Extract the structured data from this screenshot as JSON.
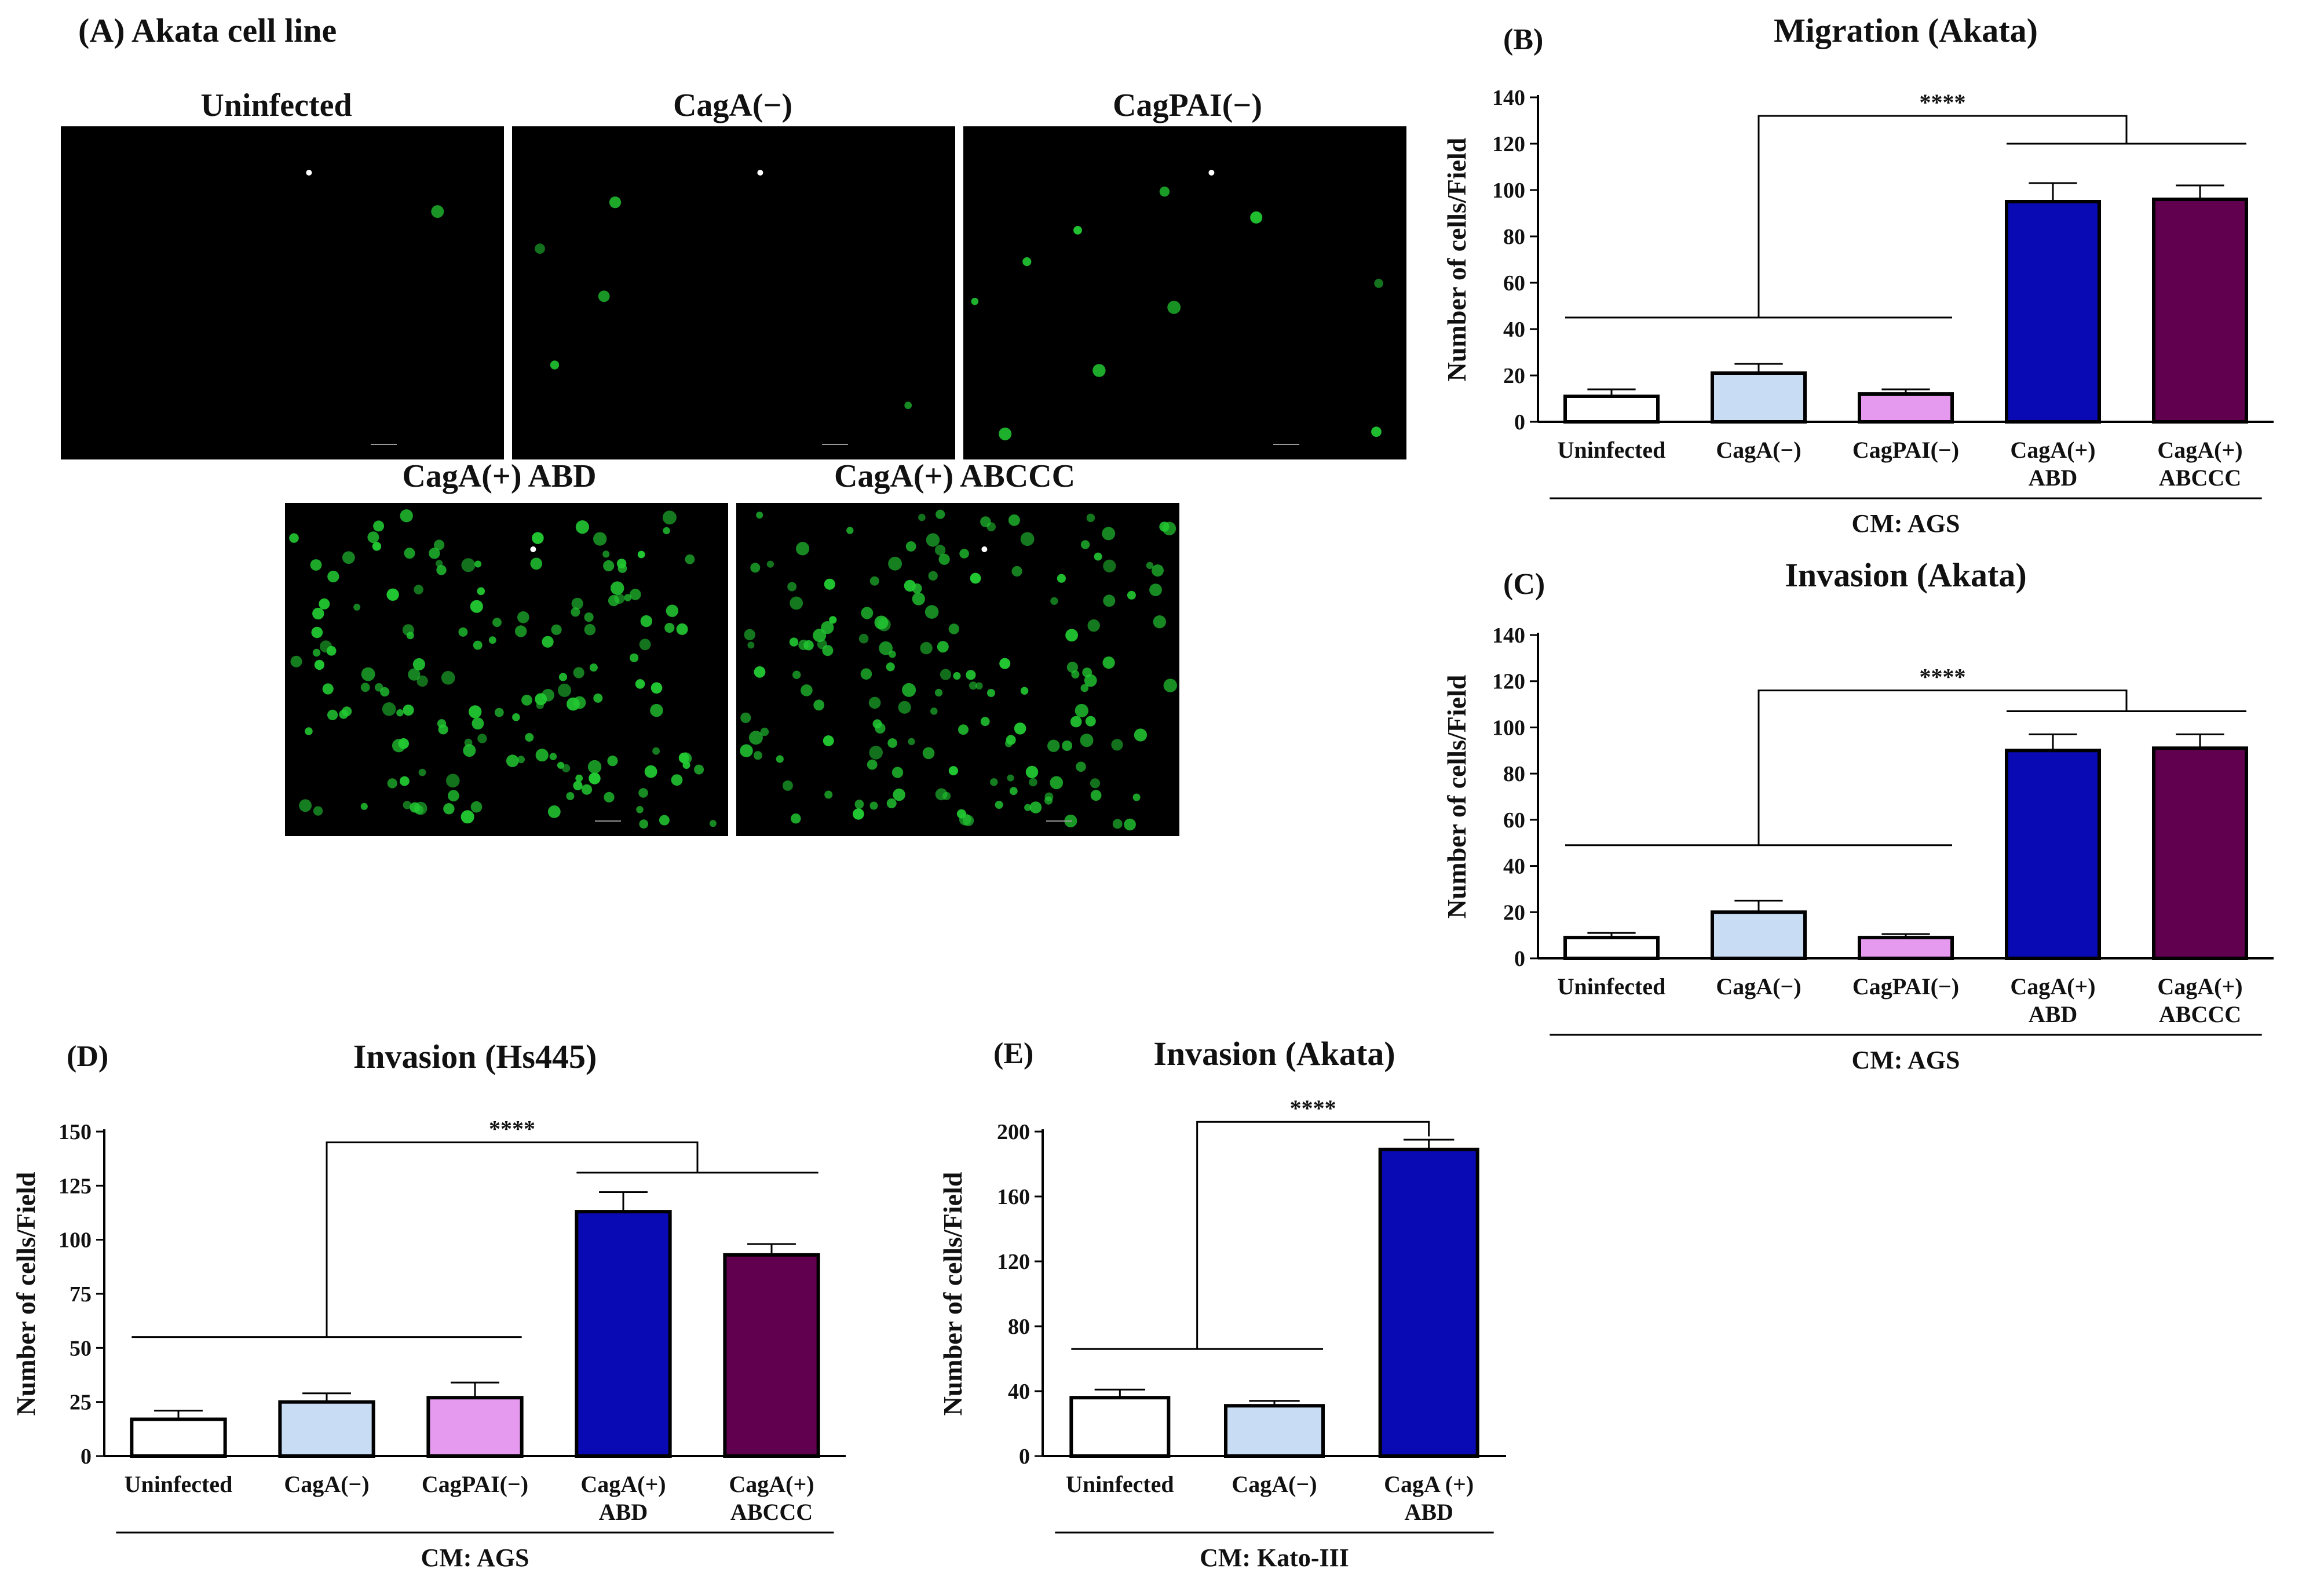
{
  "colors": {
    "uninfected": "#ffffff",
    "caga_neg": "#c8dcf4",
    "cagpai_neg": "#e59af0",
    "abd": "#0a0ab4",
    "abccc": "#620050",
    "cell_green": "#22c832",
    "micro_bg": "#000000"
  },
  "panel_a": {
    "label": "(A) Akata cell line",
    "images": [
      {
        "title": "Uninfected",
        "cell_count": 1
      },
      {
        "title": "CagA(−)",
        "cell_count": 5
      },
      {
        "title": "CagPAI(−)",
        "cell_count": 10
      },
      {
        "title": "CagA(+) ABD",
        "cell_count": 150
      },
      {
        "title": "CagA(+) ABCCC",
        "cell_count": 150
      }
    ]
  },
  "chart_data": [
    {
      "id": "B",
      "panel_label": "(B)",
      "type": "bar",
      "title": "Migration (Akata)",
      "ylabel": "Number of cells/Field",
      "ylim": [
        0,
        140
      ],
      "yticks": [
        0,
        20,
        40,
        60,
        80,
        100,
        120,
        140
      ],
      "categories": [
        [
          "Uninfected"
        ],
        [
          "CagA(−)"
        ],
        [
          "CagPAI(−)"
        ],
        [
          "CagA(+)",
          "ABD"
        ],
        [
          "CagA(+)",
          "ABCCC"
        ]
      ],
      "values": [
        11,
        21,
        12,
        95,
        96
      ],
      "errors": [
        3,
        4,
        2,
        8,
        6
      ],
      "bar_colors": [
        "#ffffff",
        "#c8dcf4",
        "#e59af0",
        "#0a0ab4",
        "#620050"
      ],
      "xlabel": "CM: AGS",
      "significance": "****",
      "bracket": {
        "left_group": [
          0,
          2
        ],
        "left_y": 45,
        "right_group": [
          3,
          4
        ],
        "right_y": 120,
        "top_y": 132
      }
    },
    {
      "id": "C",
      "panel_label": "(C)",
      "type": "bar",
      "title": "Invasion (Akata)",
      "ylabel": "Number of cells/Field",
      "ylim": [
        0,
        140
      ],
      "yticks": [
        0,
        20,
        40,
        60,
        80,
        100,
        120,
        140
      ],
      "categories": [
        [
          "Uninfected"
        ],
        [
          "CagA(−)"
        ],
        [
          "CagPAI(−)"
        ],
        [
          "CagA(+)",
          "ABD"
        ],
        [
          "CagA(+)",
          "ABCCC"
        ]
      ],
      "values": [
        9,
        20,
        9,
        90,
        91
      ],
      "errors": [
        2,
        5,
        1.5,
        7,
        6
      ],
      "bar_colors": [
        "#ffffff",
        "#c8dcf4",
        "#e59af0",
        "#0a0ab4",
        "#620050"
      ],
      "xlabel": "CM: AGS",
      "significance": "****",
      "bracket": {
        "left_group": [
          0,
          2
        ],
        "left_y": 49,
        "right_group": [
          3,
          4
        ],
        "right_y": 107,
        "top_y": 116
      }
    },
    {
      "id": "D",
      "panel_label": "(D)",
      "type": "bar",
      "title": "Invasion (Hs445)",
      "ylabel": "Number of cells/Field",
      "ylim": [
        0,
        150
      ],
      "yticks": [
        0,
        25,
        50,
        75,
        100,
        125,
        150
      ],
      "categories": [
        [
          "Uninfected"
        ],
        [
          "CagA(−)"
        ],
        [
          "CagPAI(−)"
        ],
        [
          "CagA(+)",
          "ABD"
        ],
        [
          "CagA(+)",
          "ABCCC"
        ]
      ],
      "values": [
        17,
        25,
        27,
        113,
        93
      ],
      "errors": [
        4,
        4,
        7,
        9,
        5
      ],
      "bar_colors": [
        "#ffffff",
        "#c8dcf4",
        "#e59af0",
        "#0a0ab4",
        "#620050"
      ],
      "xlabel": "CM: AGS",
      "significance": "****",
      "bracket": {
        "left_group": [
          0,
          2
        ],
        "left_y": 55,
        "right_group": [
          3,
          4
        ],
        "right_y": 131,
        "top_y": 145
      }
    },
    {
      "id": "E",
      "panel_label": "(E)",
      "type": "bar",
      "title": "Invasion (Akata)",
      "ylabel": "Number of cells/Field",
      "ylim": [
        0,
        200
      ],
      "yticks": [
        0,
        40,
        80,
        120,
        160,
        200
      ],
      "categories": [
        [
          "Uninfected"
        ],
        [
          "CagA(−)"
        ],
        [
          "CagA (+)",
          "ABD"
        ]
      ],
      "values": [
        36,
        31,
        189
      ],
      "errors": [
        5,
        3,
        6
      ],
      "bar_colors": [
        "#ffffff",
        "#c8dcf4",
        "#0a0ab4"
      ],
      "xlabel": "CM: Kato-III",
      "significance": "****",
      "bracket": {
        "left_group": [
          0,
          1
        ],
        "left_y": 66,
        "right_group": [
          2,
          2
        ],
        "right_y": 197,
        "top_y": 206
      }
    }
  ]
}
